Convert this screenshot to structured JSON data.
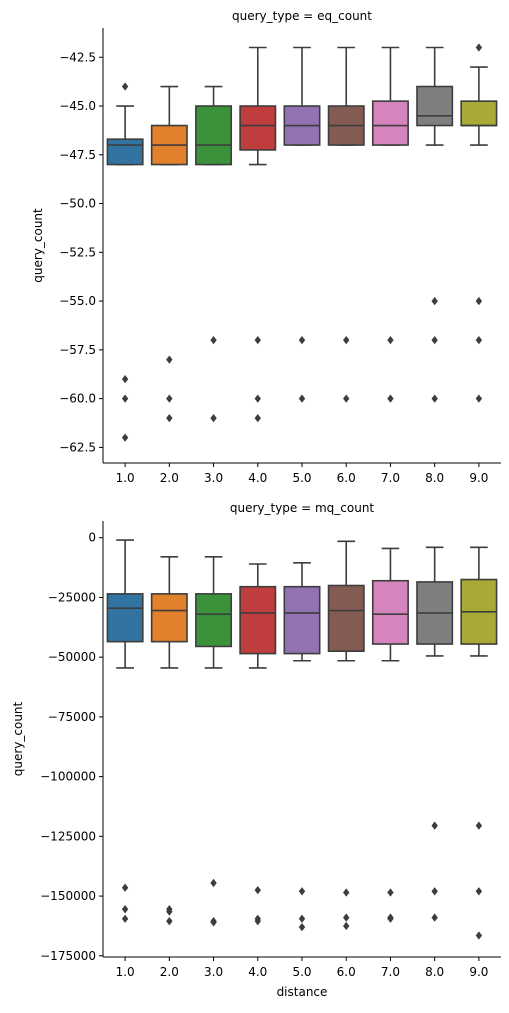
{
  "chart_data": [
    {
      "type": "box",
      "title": "query_type = eq_count",
      "xlabel": "",
      "ylabel": "query_count",
      "categories": [
        "1.0",
        "2.0",
        "3.0",
        "4.0",
        "5.0",
        "6.0",
        "7.0",
        "8.0",
        "9.0"
      ],
      "ylim": [
        -63.3,
        -41.0
      ],
      "yticks": [
        -42.5,
        -45.0,
        -47.5,
        -50.0,
        -52.5,
        -55.0,
        -57.5,
        -60.0,
        -62.5
      ],
      "ytick_labels": [
        "−42.5",
        "−45.0",
        "−47.5",
        "−50.0",
        "−52.5",
        "−55.0",
        "−57.5",
        "−60.0",
        "−62.5"
      ],
      "boxes": [
        {
          "category": "1.0",
          "color": "#3274a1",
          "whislo": -48,
          "q1": -48,
          "med": -47,
          "q3": -46.7,
          "whishi": -45,
          "fliers": [
            -44,
            -59,
            -60,
            -62
          ]
        },
        {
          "category": "2.0",
          "color": "#e1812c",
          "whislo": -48,
          "q1": -48,
          "med": -47,
          "q3": -46,
          "whishi": -44,
          "fliers": [
            -58,
            -60,
            -61
          ]
        },
        {
          "category": "3.0",
          "color": "#3a923a",
          "whislo": -48,
          "q1": -48,
          "med": -47,
          "q3": -45,
          "whishi": -44,
          "fliers": [
            -57,
            -61
          ]
        },
        {
          "category": "4.0",
          "color": "#c03d3e",
          "whislo": -48,
          "q1": -47.25,
          "med": -46,
          "q3": -45,
          "whishi": -42,
          "fliers": [
            -57,
            -60,
            -61
          ]
        },
        {
          "category": "5.0",
          "color": "#9372b2",
          "whislo": -47,
          "q1": -47,
          "med": -46,
          "q3": -45,
          "whishi": -42,
          "fliers": [
            -57,
            -60
          ]
        },
        {
          "category": "6.0",
          "color": "#845b53",
          "whislo": -47,
          "q1": -47,
          "med": -46,
          "q3": -45,
          "whishi": -42,
          "fliers": [
            -57,
            -60
          ]
        },
        {
          "category": "7.0",
          "color": "#d684bd",
          "whislo": -47,
          "q1": -47,
          "med": -46,
          "q3": -44.75,
          "whishi": -42,
          "fliers": [
            -57,
            -60
          ]
        },
        {
          "category": "8.0",
          "color": "#7f7f7f",
          "whislo": -47,
          "q1": -46,
          "med": -45.5,
          "q3": -44,
          "whishi": -42,
          "fliers": [
            -55,
            -57,
            -60
          ]
        },
        {
          "category": "9.0",
          "color": "#a9aa35",
          "whislo": -47,
          "q1": -46,
          "med": -46,
          "q3": -44.75,
          "whishi": -43,
          "fliers": [
            -42,
            -55,
            -57,
            -60
          ]
        }
      ]
    },
    {
      "type": "box",
      "title": "query_type = mq_count",
      "xlabel": "distance",
      "ylabel": "query_count",
      "categories": [
        "1.0",
        "2.0",
        "3.0",
        "4.0",
        "5.0",
        "6.0",
        "7.0",
        "8.0",
        "9.0"
      ],
      "ylim": [
        -175500,
        7000
      ],
      "yticks": [
        0,
        -25000,
        -50000,
        -75000,
        -100000,
        -125000,
        -150000,
        -175000
      ],
      "ytick_labels": [
        "0",
        "−25000",
        "−50000",
        "−75000",
        "−100000",
        "−125000",
        "−150000",
        "−175000"
      ],
      "boxes": [
        {
          "category": "1.0",
          "color": "#3274a1",
          "whislo": -54500,
          "q1": -43500,
          "med": -29500,
          "q3": -23500,
          "whishi": -1000,
          "fliers": [
            -146500,
            -155500,
            -159500
          ]
        },
        {
          "category": "2.0",
          "color": "#e1812c",
          "whislo": -54500,
          "q1": -43500,
          "med": -30500,
          "q3": -23500,
          "whishi": -8000,
          "fliers": [
            -155500,
            -156500,
            -160500
          ]
        },
        {
          "category": "3.0",
          "color": "#3a923a",
          "whislo": -54500,
          "q1": -45500,
          "med": -32000,
          "q3": -23500,
          "whishi": -8000,
          "fliers": [
            -144500,
            -160500,
            -161000
          ]
        },
        {
          "category": "4.0",
          "color": "#c03d3e",
          "whislo": -54500,
          "q1": -48500,
          "med": -31500,
          "q3": -20500,
          "whishi": -11000,
          "fliers": [
            -147500,
            -159500,
            -160500
          ]
        },
        {
          "category": "5.0",
          "color": "#9372b2",
          "whislo": -51500,
          "q1": -48500,
          "med": -31500,
          "q3": -20500,
          "whishi": -10500,
          "fliers": [
            -148000,
            -159500,
            -163000
          ]
        },
        {
          "category": "6.0",
          "color": "#845b53",
          "whislo": -51500,
          "q1": -47500,
          "med": -30500,
          "q3": -20000,
          "whishi": -1500,
          "fliers": [
            -148500,
            -159000,
            -162500
          ]
        },
        {
          "category": "7.0",
          "color": "#d684bd",
          "whislo": -51500,
          "q1": -44500,
          "med": -32000,
          "q3": -18000,
          "whishi": -4500,
          "fliers": [
            -148500,
            -159000,
            -159500
          ]
        },
        {
          "category": "8.0",
          "color": "#7f7f7f",
          "whislo": -49500,
          "q1": -44500,
          "med": -31500,
          "q3": -18500,
          "whishi": -4000,
          "fliers": [
            -120500,
            -148000,
            -159000
          ]
        },
        {
          "category": "9.0",
          "color": "#a9aa35",
          "whislo": -49500,
          "q1": -44500,
          "med": -31000,
          "q3": -17500,
          "whishi": -4000,
          "fliers": [
            -120500,
            -148000,
            -166500
          ]
        }
      ]
    }
  ]
}
